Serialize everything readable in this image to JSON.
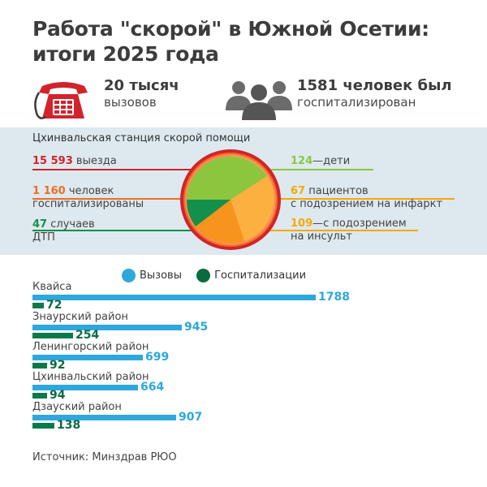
{
  "title": "Работа \"скорой\" в Южной Осетии: итоги 2025 года",
  "stats": {
    "calls_big": "20 тысяч",
    "calls_small": "вызовов",
    "hosp_big": "1581 человек был",
    "hosp_small": "госпитализирован"
  },
  "station": {
    "title": "Цхинвальская станция скорой помощи",
    "left": [
      {
        "number": "15 593",
        "text": "выезда",
        "text2": "",
        "color": "#d2232a"
      },
      {
        "number": "1 160",
        "text": "человек",
        "text2": "госпитализированы",
        "color": "#f26b22"
      },
      {
        "number": "47",
        "text": "случаев",
        "text2": "ДТП",
        "color": "#13904a"
      }
    ],
    "right": [
      {
        "number": "124",
        "text": "—дети",
        "text2": "",
        "color": "#8cc63f"
      },
      {
        "number": "67",
        "text": "пациентов",
        "text2": "с подозрением на инфаркт",
        "color": "#f6a800"
      },
      {
        "number": "109",
        "text": "—с подозрением",
        "text2": "на инсульт",
        "color": "#f6a800"
      }
    ]
  },
  "chart_data": {
    "type": "bar",
    "orientation": "horizontal",
    "legend_position": "top",
    "categories": [
      "Квайса",
      "Знаурский район",
      "Ленингорский район",
      "Цхинвальский район",
      "Дзауский район"
    ],
    "series": [
      {
        "name": "Вызовы",
        "color": "#2ea8dc",
        "values": [
          1788,
          945,
          699,
          664,
          907
        ]
      },
      {
        "name": "Госпитализации",
        "color": "#0b7a4a",
        "values": [
          72,
          254,
          92,
          94,
          138
        ]
      }
    ]
  },
  "source": "Источник: Минздрав РЮО"
}
